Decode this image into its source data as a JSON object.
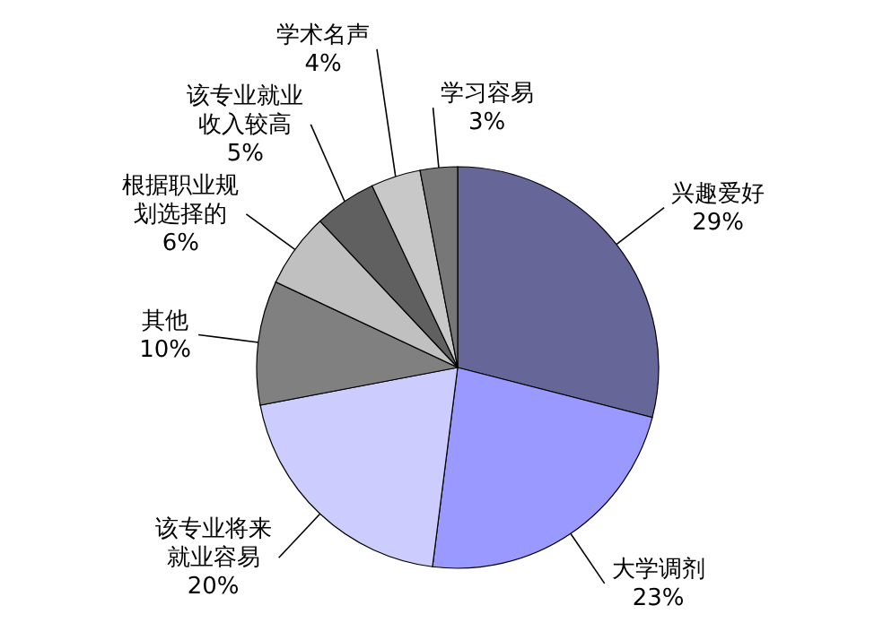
{
  "chart_data": {
    "type": "pie",
    "categories": [
      "兴趣爱好",
      "大学调剂",
      "该专业将来就业容易",
      "其他",
      "根据职业规划选择的",
      "该专业就业收入较高",
      "学术名声",
      "学习容易"
    ],
    "values": [
      29,
      23,
      20,
      10,
      6,
      5,
      4,
      3
    ],
    "value_labels": [
      "29%",
      "23%",
      "20%",
      "10%",
      "6%",
      "5%",
      "4%",
      "3%"
    ],
    "colors": [
      "#666699",
      "#9999ff",
      "#ccccff",
      "#808080",
      "#c0c0c0",
      "#606060",
      "#c8c8c8",
      "#777777"
    ]
  }
}
